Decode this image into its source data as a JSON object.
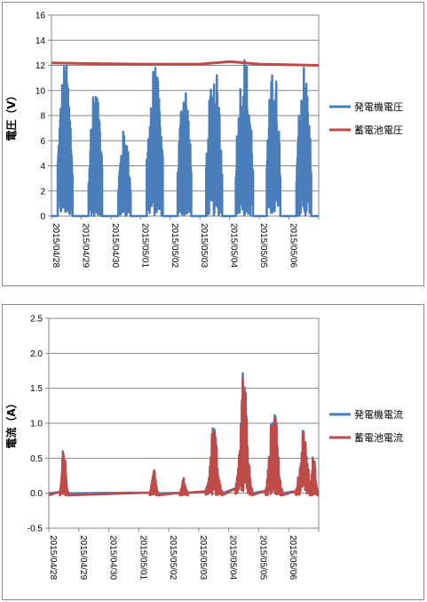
{
  "chart_data": [
    {
      "type": "line",
      "ylabel": "電圧（V）",
      "xlabel": "",
      "ylim": [
        0,
        16
      ],
      "yticks": [
        0,
        2,
        4,
        6,
        8,
        10,
        12,
        14,
        16
      ],
      "xrange": [
        "2015/04/28",
        "2015/05/07"
      ],
      "xtick_labels": [
        "2015/04/28",
        "2015/04/29",
        "2015/04/30",
        "2015/05/01",
        "2015/05/02",
        "2015/05/03",
        "2015/05/04",
        "2015/05/05",
        "2015/05/06"
      ],
      "grid": "horizontal",
      "legend_position": "right",
      "series": [
        {
          "name": "発電機電圧",
          "color": "#4a7ebb",
          "daily_peaks": [
            12.5,
            10.5,
            7.0,
            12.2,
            11.0,
            12.3,
            13.0,
            12.5,
            12.3
          ],
          "active_hours": [
            [
              5,
              17
            ],
            [
              6,
              17
            ],
            [
              6,
              16
            ],
            [
              5,
              18
            ],
            [
              6,
              17
            ],
            [
              5,
              18
            ],
            [
              5,
              19
            ],
            [
              6,
              17
            ],
            [
              6,
              18
            ]
          ]
        },
        {
          "name": "蓄電池電圧",
          "color": "#be4b48",
          "values_x": [
            "2015/04/28",
            "2015/04/29",
            "2015/05/01",
            "2015/05/03",
            "2015/05/04",
            "2015/05/05",
            "2015/05/07"
          ],
          "values_y": [
            12.2,
            12.15,
            12.1,
            12.1,
            12.3,
            12.1,
            12.0
          ]
        }
      ]
    },
    {
      "type": "line",
      "ylabel": "電流（A）",
      "xlabel": "",
      "ylim": [
        -0.5,
        2.5
      ],
      "yticks": [
        -0.5,
        0.0,
        0.5,
        1.0,
        1.5,
        2.0,
        2.5
      ],
      "xrange": [
        "2015/04/28",
        "2015/05/07"
      ],
      "xtick_labels": [
        "2015/04/28",
        "2015/04/29",
        "2015/04/30",
        "2015/05/01",
        "2015/05/02",
        "2015/05/03",
        "2015/05/04",
        "2015/05/05",
        "2015/05/06"
      ],
      "grid": "horizontal",
      "legend_position": "right",
      "series": [
        {
          "name": "発電機電流",
          "color": "#4a7ebb",
          "baseline": 0.0
        },
        {
          "name": "蓄電池電流",
          "color": "#be4b48",
          "baseline": -0.03
        }
      ],
      "peaks": [
        {
          "x": "2015/04/28 12:00",
          "y": 0.73
        },
        {
          "x": "2015/04/29 12:00",
          "y": 0.0
        },
        {
          "x": "2015/04/30 12:00",
          "y": 0.0
        },
        {
          "x": "2015/05/01 12:00",
          "y": 0.38
        },
        {
          "x": "2015/05/02 12:00",
          "y": 0.22
        },
        {
          "x": "2015/05/03 12:00",
          "y": 1.0
        },
        {
          "x": "2015/05/04 12:00",
          "y": 1.91
        },
        {
          "x": "2015/05/05 12:00",
          "y": 1.5
        },
        {
          "x": "2015/05/06 12:00",
          "y": 1.0
        },
        {
          "x": "2015/05/06 20:00",
          "y": 0.6
        }
      ]
    }
  ]
}
